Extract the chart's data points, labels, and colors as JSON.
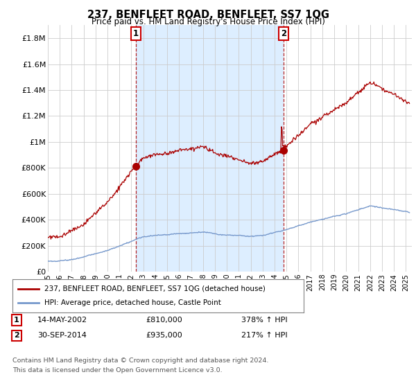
{
  "title": "237, BENFLEET ROAD, BENFLEET, SS7 1QG",
  "subtitle": "Price paid vs. HM Land Registry's House Price Index (HPI)",
  "legend_line1": "237, BENFLEET ROAD, BENFLEET, SS7 1QG (detached house)",
  "legend_line2": "HPI: Average price, detached house, Castle Point",
  "transaction1_date": "14-MAY-2002",
  "transaction1_price": "£810,000",
  "transaction1_hpi": "378% ↑ HPI",
  "transaction1_year": 2002.37,
  "transaction1_value": 810000,
  "transaction2_date": "30-SEP-2014",
  "transaction2_price": "£935,000",
  "transaction2_hpi": "217% ↑ HPI",
  "transaction2_year": 2014.75,
  "transaction2_value": 935000,
  "red_line_color": "#aa0000",
  "blue_line_color": "#7799cc",
  "shade_color": "#ddeeff",
  "background_color": "#ffffff",
  "grid_color": "#cccccc",
  "ylabel_ticks": [
    "£0",
    "£200K",
    "£400K",
    "£600K",
    "£800K",
    "£1M",
    "£1.2M",
    "£1.4M",
    "£1.6M",
    "£1.8M"
  ],
  "ylabel_values": [
    0,
    200000,
    400000,
    600000,
    800000,
    1000000,
    1200000,
    1400000,
    1600000,
    1800000
  ],
  "xmin": 1995,
  "xmax": 2025.5,
  "ymin": 0,
  "ymax": 1900000,
  "footnote1": "Contains HM Land Registry data © Crown copyright and database right 2024.",
  "footnote2": "This data is licensed under the Open Government Licence v3.0."
}
